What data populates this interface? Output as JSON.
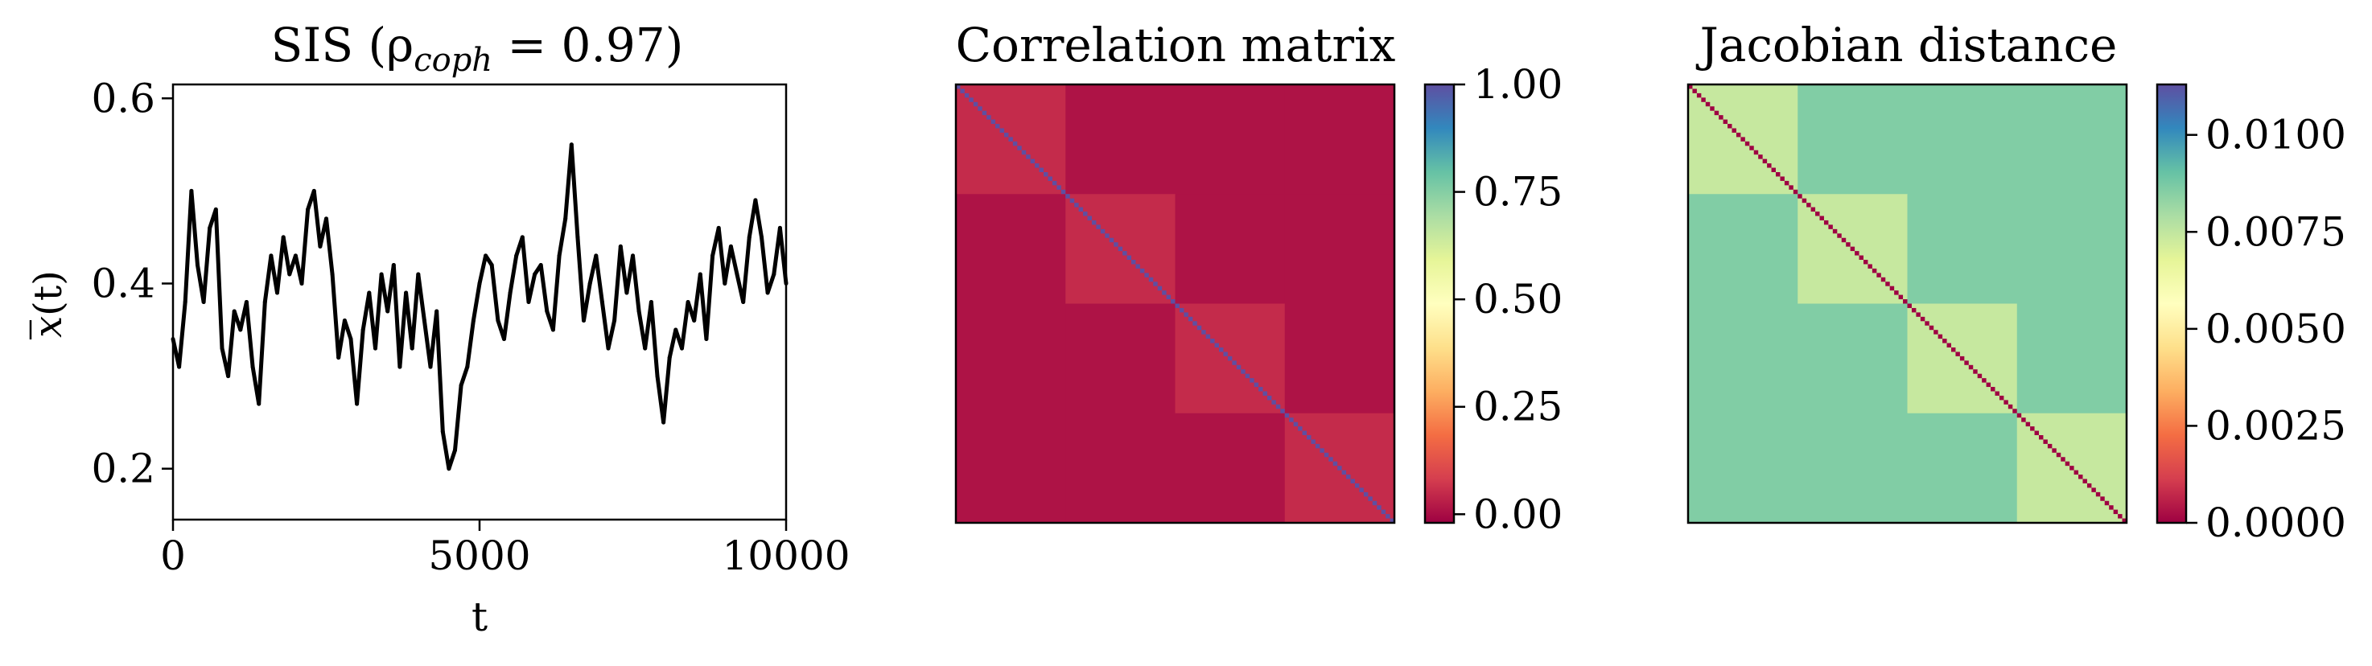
{
  "chart_data": [
    {
      "type": "line",
      "title": "SIS (ρ",
      "title_subscript": "coph",
      "title_suffix": " = 0.97)",
      "xlabel": "t",
      "ylabel_main": "x",
      "ylabel_tail": "(t)",
      "xlim": [
        0,
        10000
      ],
      "ylim": [
        0.145,
        0.615
      ],
      "xticks": [
        0,
        5000,
        10000
      ],
      "xtick_labels": [
        "0",
        "5000",
        "10000"
      ],
      "yticks": [
        0.2,
        0.4,
        0.6
      ],
      "ytick_labels": [
        "0.2",
        "0.4",
        "0.6"
      ],
      "grid": false,
      "series": [
        {
          "color": "#000000",
          "x": [
            0,
            100,
            200,
            300,
            400,
            500,
            600,
            700,
            800,
            900,
            1000,
            1100,
            1200,
            1300,
            1400,
            1500,
            1600,
            1700,
            1800,
            1900,
            2000,
            2100,
            2200,
            2300,
            2400,
            2500,
            2600,
            2700,
            2800,
            2900,
            3000,
            3100,
            3200,
            3300,
            3400,
            3500,
            3600,
            3700,
            3800,
            3900,
            4000,
            4100,
            4200,
            4300,
            4400,
            4500,
            4600,
            4700,
            4800,
            4900,
            5000,
            5100,
            5200,
            5300,
            5400,
            5500,
            5600,
            5700,
            5800,
            5900,
            6000,
            6100,
            6200,
            6300,
            6400,
            6500,
            6600,
            6700,
            6800,
            6900,
            7000,
            7100,
            7200,
            7300,
            7400,
            7500,
            7600,
            7700,
            7800,
            7900,
            8000,
            8100,
            8200,
            8300,
            8400,
            8500,
            8600,
            8700,
            8800,
            8900,
            9000,
            9100,
            9200,
            9300,
            9400,
            9500,
            9600,
            9700,
            9800,
            9900,
            10000
          ],
          "y": [
            0.34,
            0.31,
            0.38,
            0.5,
            0.42,
            0.38,
            0.46,
            0.48,
            0.33,
            0.3,
            0.37,
            0.35,
            0.38,
            0.31,
            0.27,
            0.38,
            0.43,
            0.39,
            0.45,
            0.41,
            0.43,
            0.4,
            0.48,
            0.5,
            0.44,
            0.47,
            0.41,
            0.32,
            0.36,
            0.34,
            0.27,
            0.35,
            0.39,
            0.33,
            0.41,
            0.37,
            0.42,
            0.31,
            0.39,
            0.33,
            0.41,
            0.36,
            0.31,
            0.37,
            0.24,
            0.2,
            0.22,
            0.29,
            0.31,
            0.36,
            0.4,
            0.43,
            0.42,
            0.36,
            0.34,
            0.39,
            0.43,
            0.45,
            0.38,
            0.41,
            0.42,
            0.37,
            0.35,
            0.43,
            0.47,
            0.55,
            0.45,
            0.36,
            0.4,
            0.43,
            0.38,
            0.33,
            0.36,
            0.44,
            0.39,
            0.43,
            0.37,
            0.33,
            0.38,
            0.3,
            0.25,
            0.32,
            0.35,
            0.33,
            0.38,
            0.36,
            0.41,
            0.34,
            0.43,
            0.46,
            0.4,
            0.44,
            0.41,
            0.38,
            0.45,
            0.49,
            0.45,
            0.39,
            0.41,
            0.46,
            0.4
          ]
        }
      ]
    },
    {
      "type": "heatmap",
      "title": "Correlation matrix",
      "colormap": "Spectral",
      "colorbar_range": [
        -0.02,
        1.0
      ],
      "colorbar_ticks": [
        0.0,
        0.25,
        0.5,
        0.75,
        1.0
      ],
      "colorbar_tick_labels": [
        "0.00",
        "0.25",
        "0.50",
        "0.75",
        "1.00"
      ],
      "n": 100,
      "blocks": [
        [
          0,
          25
        ],
        [
          25,
          50
        ],
        [
          50,
          75
        ],
        [
          75,
          100
        ]
      ],
      "within_block_value": 0.05,
      "between_block_value": 0.01,
      "diagonal_value": 1.0
    },
    {
      "type": "heatmap",
      "title": "Jacobian distance",
      "colormap": "Spectral",
      "colorbar_range": [
        0.0,
        0.0113
      ],
      "colorbar_ticks": [
        0.0,
        0.0025,
        0.005,
        0.0075,
        0.01
      ],
      "colorbar_tick_labels": [
        "0.0000",
        "0.0025",
        "0.0050",
        "0.0075",
        "0.0100"
      ],
      "n": 100,
      "blocks": [
        [
          0,
          25
        ],
        [
          25,
          50
        ],
        [
          50,
          75
        ],
        [
          75,
          100
        ]
      ],
      "within_block_value": 0.0074,
      "between_block_value": 0.0086,
      "diagonal_value": 0.0
    }
  ]
}
